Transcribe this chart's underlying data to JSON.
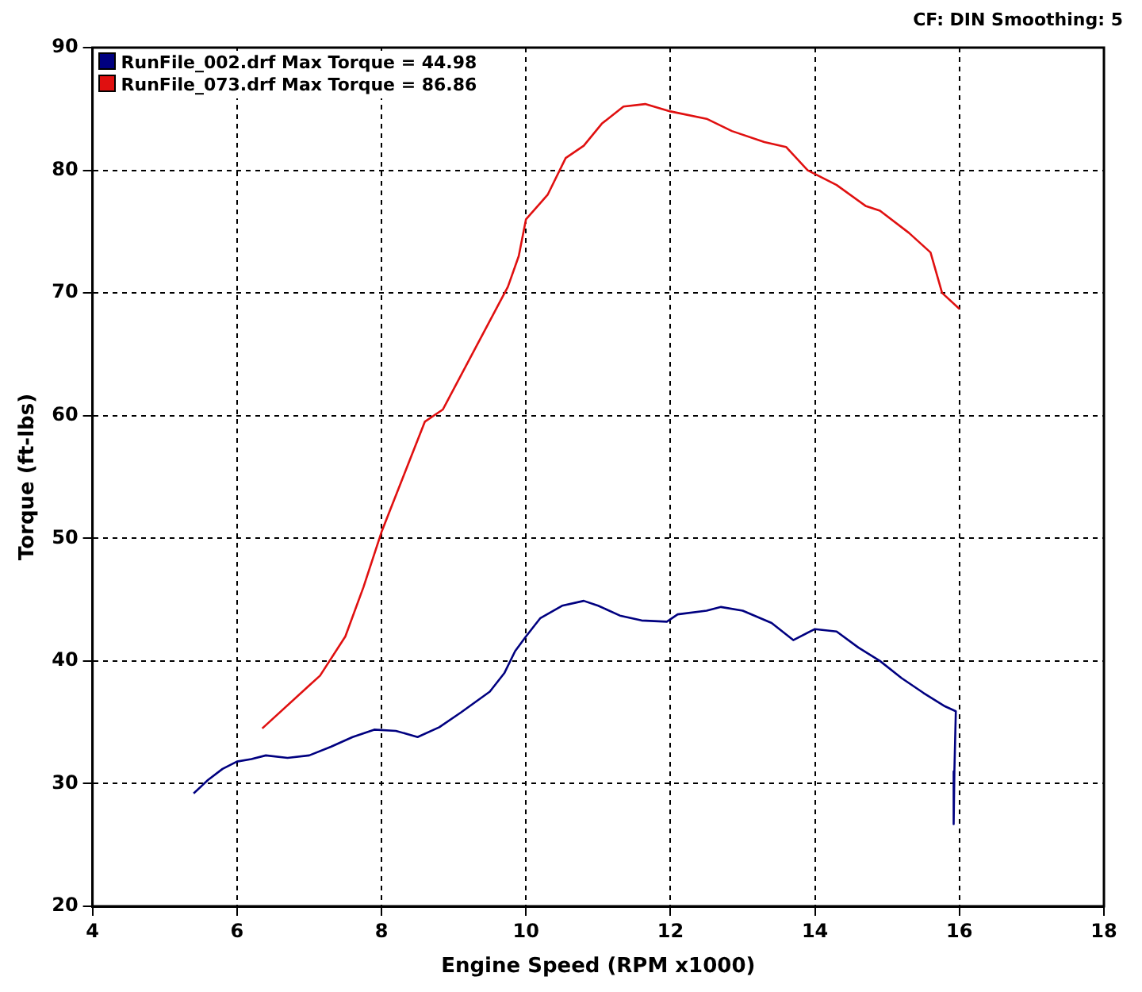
{
  "chart_data": {
    "type": "line",
    "xlabel": "Engine Speed (RPM x1000)",
    "ylabel": "Torque (ft-lbs)",
    "annotations": [
      "CF: DIN  Smoothing: 5"
    ],
    "xlim": [
      4,
      18
    ],
    "xticks": [
      4,
      6,
      8,
      10,
      12,
      14,
      16,
      18
    ],
    "ylim": [
      20,
      90
    ],
    "yticks": [
      20,
      30,
      40,
      50,
      60,
      70,
      80,
      90
    ],
    "grid": true,
    "legend": "top left",
    "line_style": "solid",
    "marker": "none",
    "series": [
      {
        "name": "RunFile_002.drf Max Torque = 44.98",
        "color": "#000080",
        "x": [
          5.4,
          5.6,
          5.8,
          6.0,
          6.2,
          6.4,
          6.7,
          7.0,
          7.3,
          7.6,
          7.9,
          8.2,
          8.5,
          8.8,
          9.1,
          9.5,
          9.7,
          9.85,
          10.0,
          10.2,
          10.5,
          10.8,
          11.0,
          11.3,
          11.6,
          11.95,
          12.1,
          12.5,
          12.7,
          13.0,
          13.4,
          13.7,
          14.0,
          14.3,
          14.6,
          14.9,
          15.2,
          15.5,
          15.8,
          15.95,
          15.93,
          15.92
        ],
        "values": [
          29.2,
          30.3,
          31.2,
          31.8,
          32.0,
          32.3,
          32.1,
          32.3,
          33.0,
          33.8,
          34.4,
          34.3,
          33.8,
          34.6,
          35.8,
          37.5,
          39.0,
          40.8,
          42.0,
          43.5,
          44.5,
          44.9,
          44.5,
          43.7,
          43.3,
          43.2,
          43.8,
          44.1,
          44.4,
          44.1,
          43.1,
          41.7,
          42.6,
          42.4,
          41.1,
          40.0,
          38.6,
          37.4,
          36.3,
          35.9,
          31.0,
          26.7
        ]
      },
      {
        "name": "RunFile_073.drf Max Torque = 86.86",
        "color": "#e01010",
        "x": [
          6.35,
          7.0,
          7.15,
          7.5,
          7.75,
          8.0,
          8.3,
          8.6,
          8.85,
          9.3,
          9.75,
          9.9,
          10.0,
          10.3,
          10.55,
          10.8,
          11.05,
          11.35,
          11.65,
          12.0,
          12.5,
          12.85,
          13.3,
          13.6,
          13.9,
          14.3,
          14.7,
          14.9,
          15.3,
          15.6,
          15.76,
          16.0
        ],
        "values": [
          34.5,
          38.0,
          38.8,
          42.0,
          46.0,
          50.5,
          55.0,
          59.5,
          60.5,
          65.5,
          70.5,
          73.0,
          76.0,
          78.0,
          81.0,
          82.0,
          83.8,
          85.2,
          85.4,
          84.8,
          84.2,
          83.2,
          82.3,
          81.9,
          80.0,
          78.8,
          77.1,
          76.7,
          74.9,
          73.3,
          70.0,
          68.7
        ]
      }
    ]
  }
}
